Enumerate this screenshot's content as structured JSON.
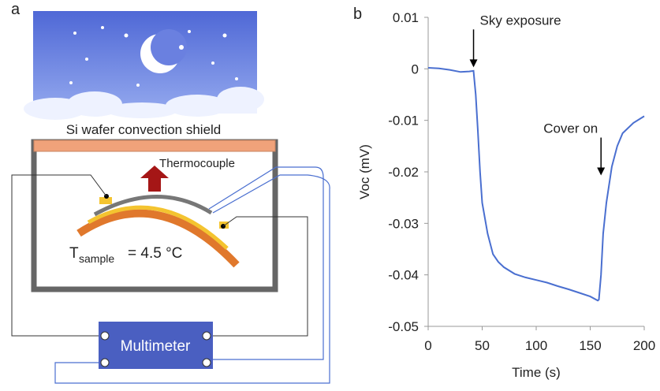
{
  "diagram": {
    "panel_label": "a",
    "shield_label": "Si wafer convection shield",
    "thermocouple_label": "Thermocouple",
    "temperature_symbol": "T",
    "temperature_subscript": "sample",
    "temperature_value": "= 4.5 °C",
    "meter_label": "Multimeter"
  },
  "chart_data": {
    "type": "line",
    "panel_label": "b",
    "x_label": "Time (s)",
    "y_label": "Voc (mV)",
    "color": "#4a6fd0",
    "x": [
      0,
      10,
      20,
      30,
      38,
      42,
      44,
      46,
      48,
      50,
      55,
      60,
      65,
      70,
      80,
      90,
      100,
      110,
      120,
      130,
      140,
      150,
      157,
      158,
      160,
      162,
      165,
      170,
      175,
      180,
      190,
      200
    ],
    "values": [
      0.0002,
      0.0001,
      -0.0002,
      -0.0006,
      -0.0005,
      -0.0004,
      -0.005,
      -0.012,
      -0.02,
      -0.026,
      -0.032,
      -0.036,
      -0.0375,
      -0.0385,
      -0.0398,
      -0.0405,
      -0.041,
      -0.0415,
      -0.0422,
      -0.0428,
      -0.0435,
      -0.0442,
      -0.045,
      -0.0448,
      -0.04,
      -0.032,
      -0.026,
      -0.019,
      -0.015,
      -0.0125,
      -0.0105,
      -0.0092
    ],
    "xlim": [
      0,
      200
    ],
    "xticks": [
      0,
      50,
      100,
      150,
      200
    ],
    "ylim": [
      -0.05,
      0.01
    ],
    "yticks": [
      0.01,
      0,
      -0.01,
      -0.02,
      -0.03,
      -0.04,
      -0.05
    ],
    "annotations": [
      {
        "text": "Sky exposure",
        "x": 42,
        "y": 0
      },
      {
        "text": "Cover on",
        "x": 160,
        "y": -0.021
      }
    ]
  }
}
